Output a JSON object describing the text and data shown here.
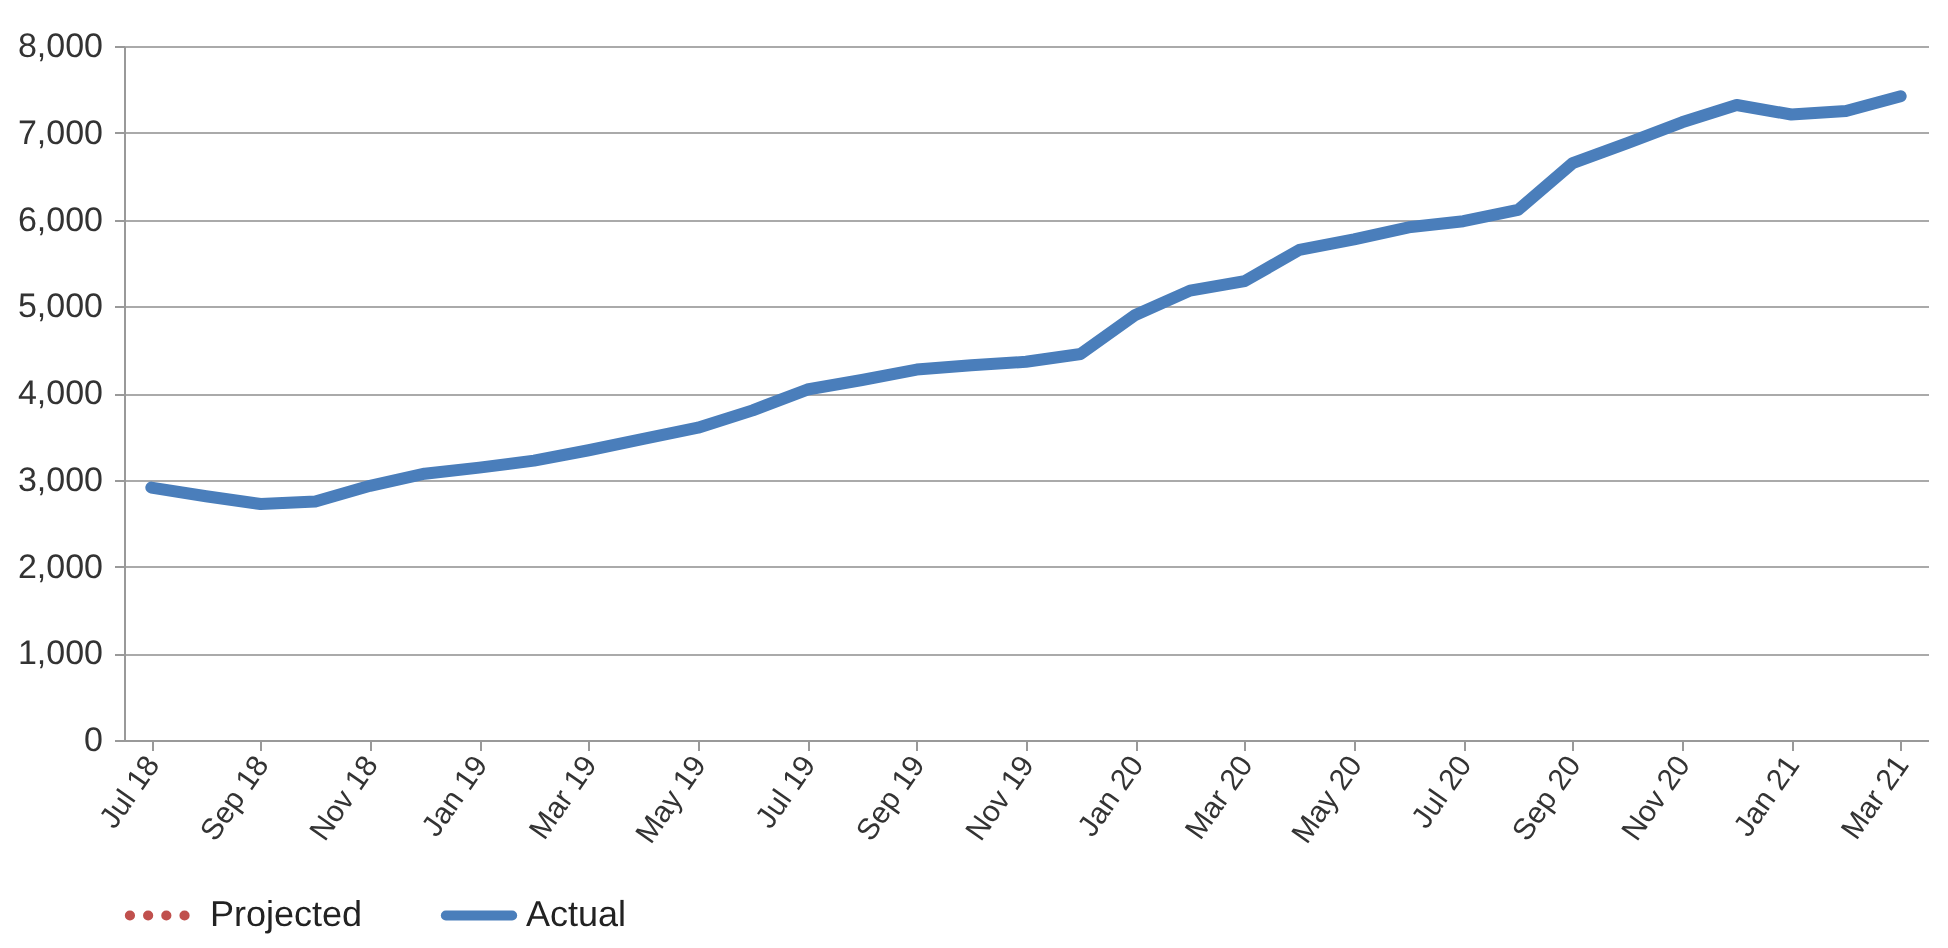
{
  "chart_data": {
    "type": "line",
    "categories": [
      "Jul 18",
      null,
      "Sep 18",
      null,
      "Nov 18",
      null,
      "Jan 19",
      null,
      "Mar 19",
      null,
      "May 19",
      null,
      "Jul 19",
      null,
      "Sep 19",
      null,
      "Nov 19",
      null,
      "Jan 20",
      null,
      "Mar 20",
      null,
      "May 20",
      null,
      "Jul 20",
      null,
      "Sep 20",
      null,
      "Nov 20",
      null,
      "Jan 21",
      null,
      "Mar 21"
    ],
    "series": [
      {
        "name": "Projected",
        "color": "#c0504d",
        "line_style": "dotted",
        "values": [
          null,
          null,
          null,
          null,
          null,
          null,
          null,
          null,
          null,
          null,
          null,
          null,
          null,
          null,
          null,
          null,
          null,
          null,
          null,
          null,
          null,
          null,
          null,
          null,
          null,
          null,
          null,
          null,
          null,
          null,
          null,
          null,
          null
        ]
      },
      {
        "name": "Actual",
        "color": "#4a7ebb",
        "line_style": "solid",
        "values": [
          2910,
          2810,
          2720,
          2750,
          2930,
          3070,
          3140,
          3220,
          3340,
          3470,
          3600,
          3800,
          4040,
          4150,
          4270,
          4320,
          4360,
          4450,
          4900,
          5180,
          5290,
          5650,
          5770,
          5910,
          5980,
          6110,
          6650,
          6880,
          7120,
          7320,
          7210,
          7250,
          7420
        ]
      }
    ],
    "ylim": [
      0,
      8000
    ],
    "yticks": [
      0,
      {
        "value": 1000,
        "label": "1,000"
      },
      {
        "value": 2000,
        "label": "2,000"
      },
      {
        "value": 3000,
        "label": "3,000"
      },
      {
        "value": 4000,
        "label": "4,000"
      },
      {
        "value": 5000,
        "label": "5,000"
      },
      {
        "value": 6000,
        "label": "6,000"
      },
      {
        "value": 7000,
        "label": "7,000"
      },
      {
        "value": 8000,
        "label": "8,000"
      }
    ],
    "grid": "y",
    "legend": "bottom"
  }
}
